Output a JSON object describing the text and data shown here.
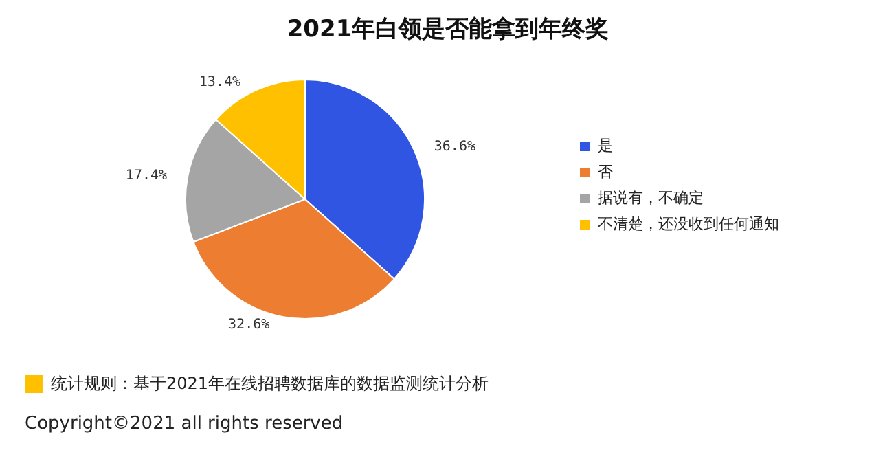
{
  "chart_data": {
    "type": "pie",
    "title": "2021年白领是否能拿到年终奖",
    "categories": [
      "是",
      "否",
      "据说有，不确定",
      "不清楚，还没收到任何通知"
    ],
    "values": [
      36.6,
      32.6,
      17.4,
      13.4
    ],
    "colors": [
      "#2f55e2",
      "#ed7d31",
      "#a5a5a5",
      "#ffc000"
    ],
    "value_labels": [
      "36.6%",
      "32.6%",
      "17.4%",
      "13.4%"
    ],
    "legend": "right",
    "annotations": [
      "统计规则：基于2021年在线招聘数据库的数据监测统计分析",
      "Copyright©2021 all rights reserved"
    ]
  }
}
